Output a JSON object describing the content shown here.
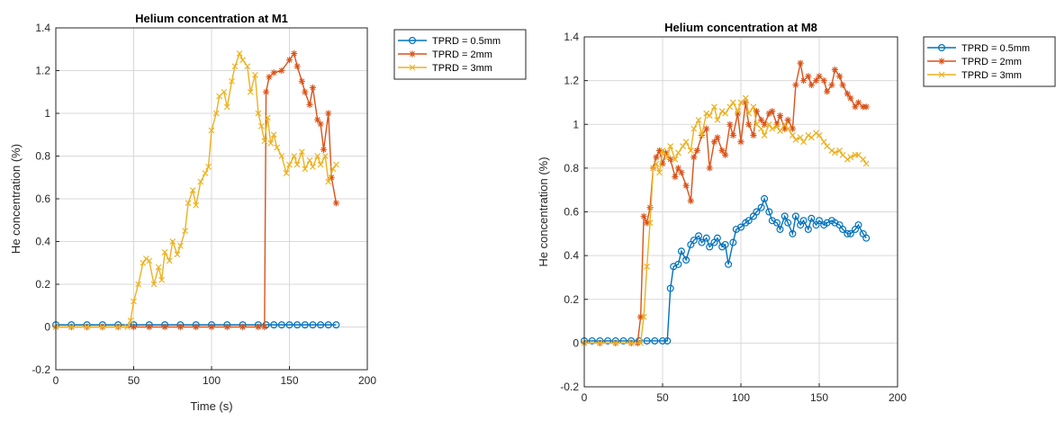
{
  "chart_data": [
    {
      "type": "line",
      "title": "Helium concentration at M1",
      "xlabel": "Time (s)",
      "ylabel": "He concentration (%)",
      "xlim": [
        0,
        200
      ],
      "ylim": [
        -0.2,
        1.4
      ],
      "xticks": [
        "0",
        "50",
        "100",
        "150",
        "200"
      ],
      "yticks": [
        "-0.2",
        "0",
        "0.2",
        "0.4",
        "0.6",
        "0.8",
        "1",
        "1.2",
        "1.4"
      ],
      "grid": true,
      "legend_position": "outside-top-right",
      "series": [
        {
          "name": "TPRD = 0.5mm",
          "color": "#0072BD",
          "marker": "circle",
          "x": [
            0,
            10,
            20,
            30,
            40,
            50,
            60,
            70,
            80,
            90,
            100,
            110,
            120,
            130,
            135,
            140,
            145,
            150,
            155,
            160,
            165,
            170,
            175,
            180
          ],
          "y": [
            0.01,
            0.01,
            0.01,
            0.01,
            0.01,
            0.01,
            0.01,
            0.01,
            0.01,
            0.01,
            0.01,
            0.01,
            0.01,
            0.01,
            0.01,
            0.01,
            0.01,
            0.01,
            0.01,
            0.01,
            0.01,
            0.01,
            0.01,
            0.01
          ]
        },
        {
          "name": "TPRD = 2mm",
          "color": "#D95319",
          "marker": "asterisk",
          "x": [
            0,
            10,
            20,
            30,
            40,
            50,
            60,
            70,
            80,
            90,
            100,
            110,
            120,
            130,
            134,
            135,
            137,
            140,
            145,
            150,
            153,
            155,
            158,
            160,
            163,
            165,
            168,
            170,
            172,
            175,
            177,
            180
          ],
          "y": [
            0.0,
            0.0,
            0.0,
            0.0,
            0.0,
            0.0,
            0.0,
            0.0,
            0.0,
            0.0,
            0.0,
            0.0,
            0.0,
            0.0,
            0.0,
            1.1,
            1.17,
            1.19,
            1.2,
            1.25,
            1.28,
            1.22,
            1.15,
            1.1,
            1.04,
            1.12,
            0.97,
            0.95,
            0.83,
            1.0,
            0.7,
            0.58
          ]
        },
        {
          "name": "TPRD = 3mm",
          "color": "#EDB120",
          "marker": "x",
          "x": [
            0,
            10,
            20,
            30,
            40,
            46,
            48,
            50,
            53,
            56,
            58,
            60,
            63,
            66,
            68,
            70,
            73,
            75,
            78,
            80,
            83,
            85,
            88,
            90,
            93,
            96,
            98,
            100,
            103,
            105,
            108,
            110,
            113,
            115,
            118,
            120,
            123,
            125,
            128,
            130,
            132,
            134,
            136,
            138,
            140,
            142,
            145,
            148,
            150,
            153,
            155,
            158,
            160,
            163,
            165,
            168,
            170,
            173,
            175,
            178,
            180
          ],
          "y": [
            0.0,
            0.0,
            0.0,
            0.0,
            0.0,
            0.0,
            0.03,
            0.12,
            0.2,
            0.3,
            0.32,
            0.31,
            0.2,
            0.28,
            0.22,
            0.35,
            0.31,
            0.4,
            0.34,
            0.38,
            0.45,
            0.58,
            0.64,
            0.57,
            0.68,
            0.72,
            0.75,
            0.92,
            1.0,
            1.08,
            1.1,
            1.03,
            1.15,
            1.22,
            1.28,
            1.25,
            1.22,
            1.1,
            1.18,
            1.0,
            0.94,
            0.87,
            0.98,
            0.86,
            0.9,
            0.84,
            0.8,
            0.72,
            0.76,
            0.8,
            0.76,
            0.82,
            0.74,
            0.78,
            0.75,
            0.8,
            0.76,
            0.8,
            0.68,
            0.74,
            0.76
          ]
        }
      ]
    },
    {
      "type": "line",
      "title": "Helium concentration at M8",
      "xlabel": "",
      "ylabel": "He concentration (%)",
      "xlim": [
        0,
        200
      ],
      "ylim": [
        -0.2,
        1.4
      ],
      "xticks": [
        "0",
        "50",
        "100",
        "150",
        "200"
      ],
      "yticks": [
        "-0.2",
        "0",
        "0.2",
        "0.4",
        "0.6",
        "0.8",
        "1",
        "1.2",
        "1.4"
      ],
      "grid": true,
      "legend_position": "outside-top-right",
      "series": [
        {
          "name": "TPRD = 0.5mm",
          "color": "#0072BD",
          "marker": "circle",
          "x": [
            0,
            5,
            10,
            15,
            20,
            25,
            30,
            35,
            40,
            45,
            50,
            53,
            55,
            57,
            60,
            62,
            65,
            68,
            70,
            73,
            75,
            78,
            80,
            83,
            85,
            88,
            90,
            92,
            95,
            97,
            100,
            103,
            105,
            108,
            110,
            113,
            115,
            118,
            120,
            123,
            125,
            128,
            130,
            133,
            135,
            138,
            140,
            143,
            145,
            148,
            150,
            153,
            155,
            158,
            160,
            163,
            165,
            168,
            170,
            173,
            175,
            178,
            180
          ],
          "y": [
            0.01,
            0.01,
            0.01,
            0.01,
            0.01,
            0.01,
            0.01,
            0.01,
            0.01,
            0.01,
            0.01,
            0.01,
            0.25,
            0.35,
            0.36,
            0.42,
            0.38,
            0.45,
            0.47,
            0.49,
            0.46,
            0.48,
            0.44,
            0.46,
            0.48,
            0.44,
            0.45,
            0.36,
            0.46,
            0.52,
            0.53,
            0.55,
            0.56,
            0.58,
            0.6,
            0.62,
            0.66,
            0.6,
            0.56,
            0.55,
            0.52,
            0.58,
            0.55,
            0.5,
            0.58,
            0.54,
            0.56,
            0.52,
            0.57,
            0.54,
            0.56,
            0.54,
            0.55,
            0.56,
            0.55,
            0.54,
            0.52,
            0.5,
            0.5,
            0.52,
            0.54,
            0.5,
            0.48
          ]
        },
        {
          "name": "TPRD = 2mm",
          "color": "#D95319",
          "marker": "asterisk",
          "x": [
            0,
            10,
            20,
            30,
            34,
            36,
            38,
            40,
            42,
            44,
            46,
            48,
            50,
            52,
            55,
            58,
            60,
            62,
            65,
            68,
            70,
            72,
            75,
            78,
            80,
            83,
            85,
            88,
            90,
            93,
            95,
            98,
            100,
            103,
            105,
            108,
            110,
            113,
            115,
            118,
            120,
            123,
            125,
            128,
            130,
            133,
            135,
            138,
            140,
            143,
            145,
            148,
            150,
            153,
            155,
            158,
            160,
            163,
            165,
            168,
            170,
            173,
            175,
            178,
            180
          ],
          "y": [
            0.0,
            0.0,
            0.0,
            0.0,
            0.0,
            0.12,
            0.58,
            0.55,
            0.62,
            0.8,
            0.85,
            0.88,
            0.82,
            0.87,
            0.84,
            0.76,
            0.8,
            0.78,
            0.72,
            0.65,
            0.85,
            0.88,
            0.95,
            0.98,
            0.8,
            0.92,
            0.94,
            0.88,
            0.86,
            1.0,
            0.95,
            1.05,
            0.92,
            1.1,
            1.0,
            0.95,
            1.06,
            1.02,
            1.0,
            1.05,
            1.06,
            1.0,
            1.04,
            0.98,
            1.02,
            0.98,
            1.18,
            1.28,
            1.2,
            1.22,
            1.18,
            1.2,
            1.22,
            1.2,
            1.15,
            1.18,
            1.25,
            1.22,
            1.18,
            1.14,
            1.12,
            1.08,
            1.1,
            1.08,
            1.08
          ]
        },
        {
          "name": "TPRD = 3mm",
          "color": "#EDB120",
          "marker": "x",
          "x": [
            0,
            10,
            20,
            30,
            36,
            38,
            40,
            42,
            44,
            46,
            48,
            50,
            53,
            55,
            58,
            60,
            63,
            65,
            68,
            70,
            73,
            75,
            78,
            80,
            83,
            85,
            88,
            90,
            93,
            95,
            98,
            100,
            103,
            105,
            108,
            110,
            113,
            115,
            118,
            120,
            123,
            125,
            128,
            130,
            133,
            135,
            138,
            140,
            143,
            145,
            148,
            150,
            153,
            155,
            158,
            160,
            163,
            165,
            168,
            170,
            173,
            175,
            178,
            180
          ],
          "y": [
            0.0,
            0.0,
            0.0,
            0.0,
            0.0,
            0.12,
            0.35,
            0.55,
            0.8,
            0.82,
            0.78,
            0.88,
            0.85,
            0.9,
            0.84,
            0.87,
            0.9,
            0.92,
            0.88,
            0.98,
            1.02,
            0.95,
            1.05,
            1.04,
            1.08,
            1.02,
            1.06,
            1.05,
            1.08,
            1.1,
            1.06,
            1.1,
            1.12,
            1.05,
            1.08,
            1.0,
            0.98,
            0.95,
            1.0,
            0.98,
            0.99,
            0.97,
            1.0,
            0.98,
            0.95,
            0.93,
            0.94,
            0.92,
            0.95,
            0.94,
            0.96,
            0.95,
            0.92,
            0.9,
            0.88,
            0.87,
            0.88,
            0.86,
            0.84,
            0.85,
            0.86,
            0.86,
            0.84,
            0.82
          ]
        }
      ]
    }
  ]
}
